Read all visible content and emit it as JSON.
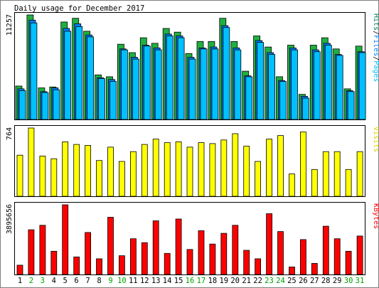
{
  "chart_data": [
    {
      "type": "bar",
      "title": "Daily usage for December 2017",
      "ymax_label": "11257",
      "ymax": 11257,
      "ylabel_parts": [
        {
          "text": "Hits",
          "color": "#00805c"
        },
        {
          "text": "/",
          "color": "#000000"
        },
        {
          "text": "Files",
          "color": "#0080ff"
        },
        {
          "text": "/",
          "color": "#000000"
        },
        {
          "text": "Pages",
          "color": "#00c0ff"
        }
      ],
      "series": [
        {
          "name": "Hits",
          "color": "#20b040",
          "values": [
            3600,
            11257,
            3400,
            3500,
            10500,
            10900,
            9500,
            4800,
            4600,
            8100,
            7200,
            8800,
            8200,
            9800,
            9400,
            7100,
            8400,
            8400,
            10900,
            8400,
            5200,
            9000,
            7800,
            4600,
            8000,
            2700,
            8000,
            8800,
            7600,
            3300,
            7900
          ]
        },
        {
          "name": "Files",
          "color": "#0080ff",
          "values": [
            3300,
            10700,
            3000,
            3400,
            9800,
            10300,
            9100,
            4500,
            4300,
            7600,
            6700,
            8000,
            7700,
            9200,
            9000,
            6700,
            7700,
            7800,
            10100,
            7700,
            4700,
            8500,
            7200,
            4200,
            7700,
            2500,
            7500,
            8200,
            7000,
            3100,
            7300
          ]
        },
        {
          "name": "Pages",
          "color": "#00c0ff",
          "values": [
            3100,
            10400,
            2900,
            3200,
            9500,
            10000,
            8900,
            4400,
            4100,
            7500,
            6500,
            7900,
            7500,
            9000,
            8800,
            6500,
            7600,
            7600,
            9900,
            7500,
            4600,
            8300,
            7000,
            4100,
            7500,
            2300,
            7300,
            8000,
            6900,
            3000,
            7200
          ]
        }
      ]
    },
    {
      "type": "bar",
      "ymax_label": "764",
      "ymax": 764,
      "ylabel_parts": [
        {
          "text": "Visits",
          "color": "#e0d000"
        }
      ],
      "series": [
        {
          "name": "Visits",
          "color": "#ffff00",
          "values": [
            460,
            764,
            450,
            420,
            610,
            580,
            570,
            400,
            550,
            390,
            500,
            580,
            640,
            600,
            610,
            550,
            600,
            590,
            630,
            700,
            560,
            390,
            640,
            680,
            250,
            720,
            300,
            500,
            500,
            300,
            500
          ]
        }
      ]
    },
    {
      "type": "bar",
      "ymax_label": "3895656",
      "ymax": 3895656,
      "ylabel_parts": [
        {
          "text": "KBytes",
          "color": "#ff0000"
        }
      ],
      "series": [
        {
          "name": "KBytes",
          "color": "#ff0000",
          "values": [
            520000,
            2500000,
            2750000,
            1300000,
            3895656,
            980000,
            2350000,
            880000,
            3200000,
            1050000,
            2000000,
            1780000,
            3000000,
            1180000,
            3100000,
            1400000,
            2450000,
            1700000,
            2300000,
            2750000,
            1350000,
            880000,
            3400000,
            2400000,
            420000,
            1950000,
            620000,
            2700000,
            2000000,
            1300000,
            2150000
          ]
        }
      ]
    }
  ],
  "days": [
    {
      "label": "1",
      "weekend": false
    },
    {
      "label": "2",
      "weekend": true
    },
    {
      "label": "3",
      "weekend": true
    },
    {
      "label": "4",
      "weekend": false
    },
    {
      "label": "5",
      "weekend": false
    },
    {
      "label": "6",
      "weekend": false
    },
    {
      "label": "7",
      "weekend": false
    },
    {
      "label": "8",
      "weekend": false
    },
    {
      "label": "9",
      "weekend": true
    },
    {
      "label": "10",
      "weekend": true
    },
    {
      "label": "11",
      "weekend": false
    },
    {
      "label": "12",
      "weekend": false
    },
    {
      "label": "13",
      "weekend": false
    },
    {
      "label": "14",
      "weekend": false
    },
    {
      "label": "15",
      "weekend": false
    },
    {
      "label": "16",
      "weekend": true
    },
    {
      "label": "17",
      "weekend": true
    },
    {
      "label": "18",
      "weekend": false
    },
    {
      "label": "19",
      "weekend": false
    },
    {
      "label": "20",
      "weekend": false
    },
    {
      "label": "21",
      "weekend": false
    },
    {
      "label": "22",
      "weekend": false
    },
    {
      "label": "23",
      "weekend": true
    },
    {
      "label": "24",
      "weekend": true
    },
    {
      "label": "25",
      "weekend": false
    },
    {
      "label": "26",
      "weekend": false
    },
    {
      "label": "27",
      "weekend": false
    },
    {
      "label": "28",
      "weekend": false
    },
    {
      "label": "29",
      "weekend": false
    },
    {
      "label": "30",
      "weekend": true
    },
    {
      "label": "31",
      "weekend": true
    }
  ],
  "colors": {
    "weekday_label": "#000000",
    "weekend_label": "#00a000",
    "panel_border": "#000000",
    "frame_border": "#808080"
  }
}
